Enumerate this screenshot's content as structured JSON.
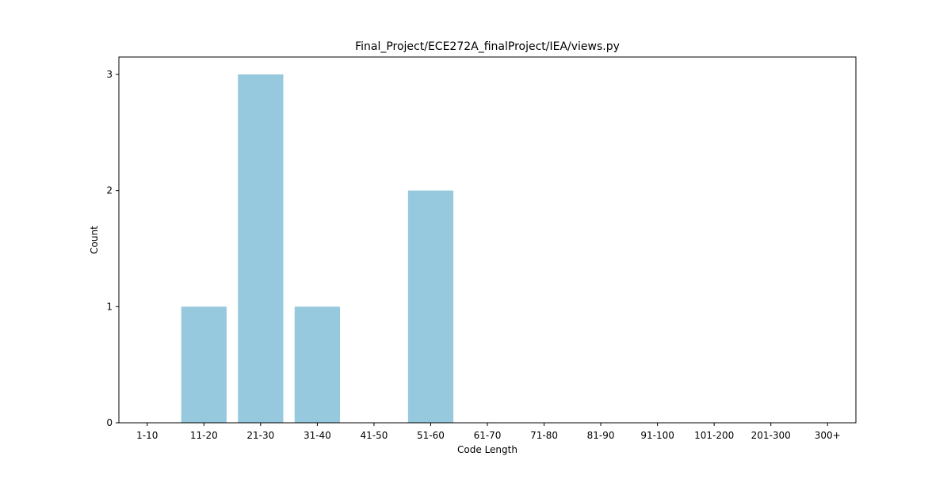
{
  "chart_data": {
    "type": "bar",
    "title": "Final_Project/ECE272A_finalProject/IEA/views.py",
    "xlabel": "Code Length",
    "ylabel": "Count",
    "categories": [
      "1-10",
      "11-20",
      "21-30",
      "31-40",
      "41-50",
      "51-60",
      "61-70",
      "71-80",
      "81-90",
      "91-100",
      "101-200",
      "201-300",
      "300+"
    ],
    "values": [
      0,
      1,
      3,
      1,
      0,
      2,
      0,
      0,
      0,
      0,
      0,
      0,
      0
    ],
    "yticks": [
      "0",
      "1",
      "2",
      "3"
    ],
    "ylim": [
      0,
      3.15
    ],
    "grid": false,
    "bar_color": "#96c9dd"
  }
}
